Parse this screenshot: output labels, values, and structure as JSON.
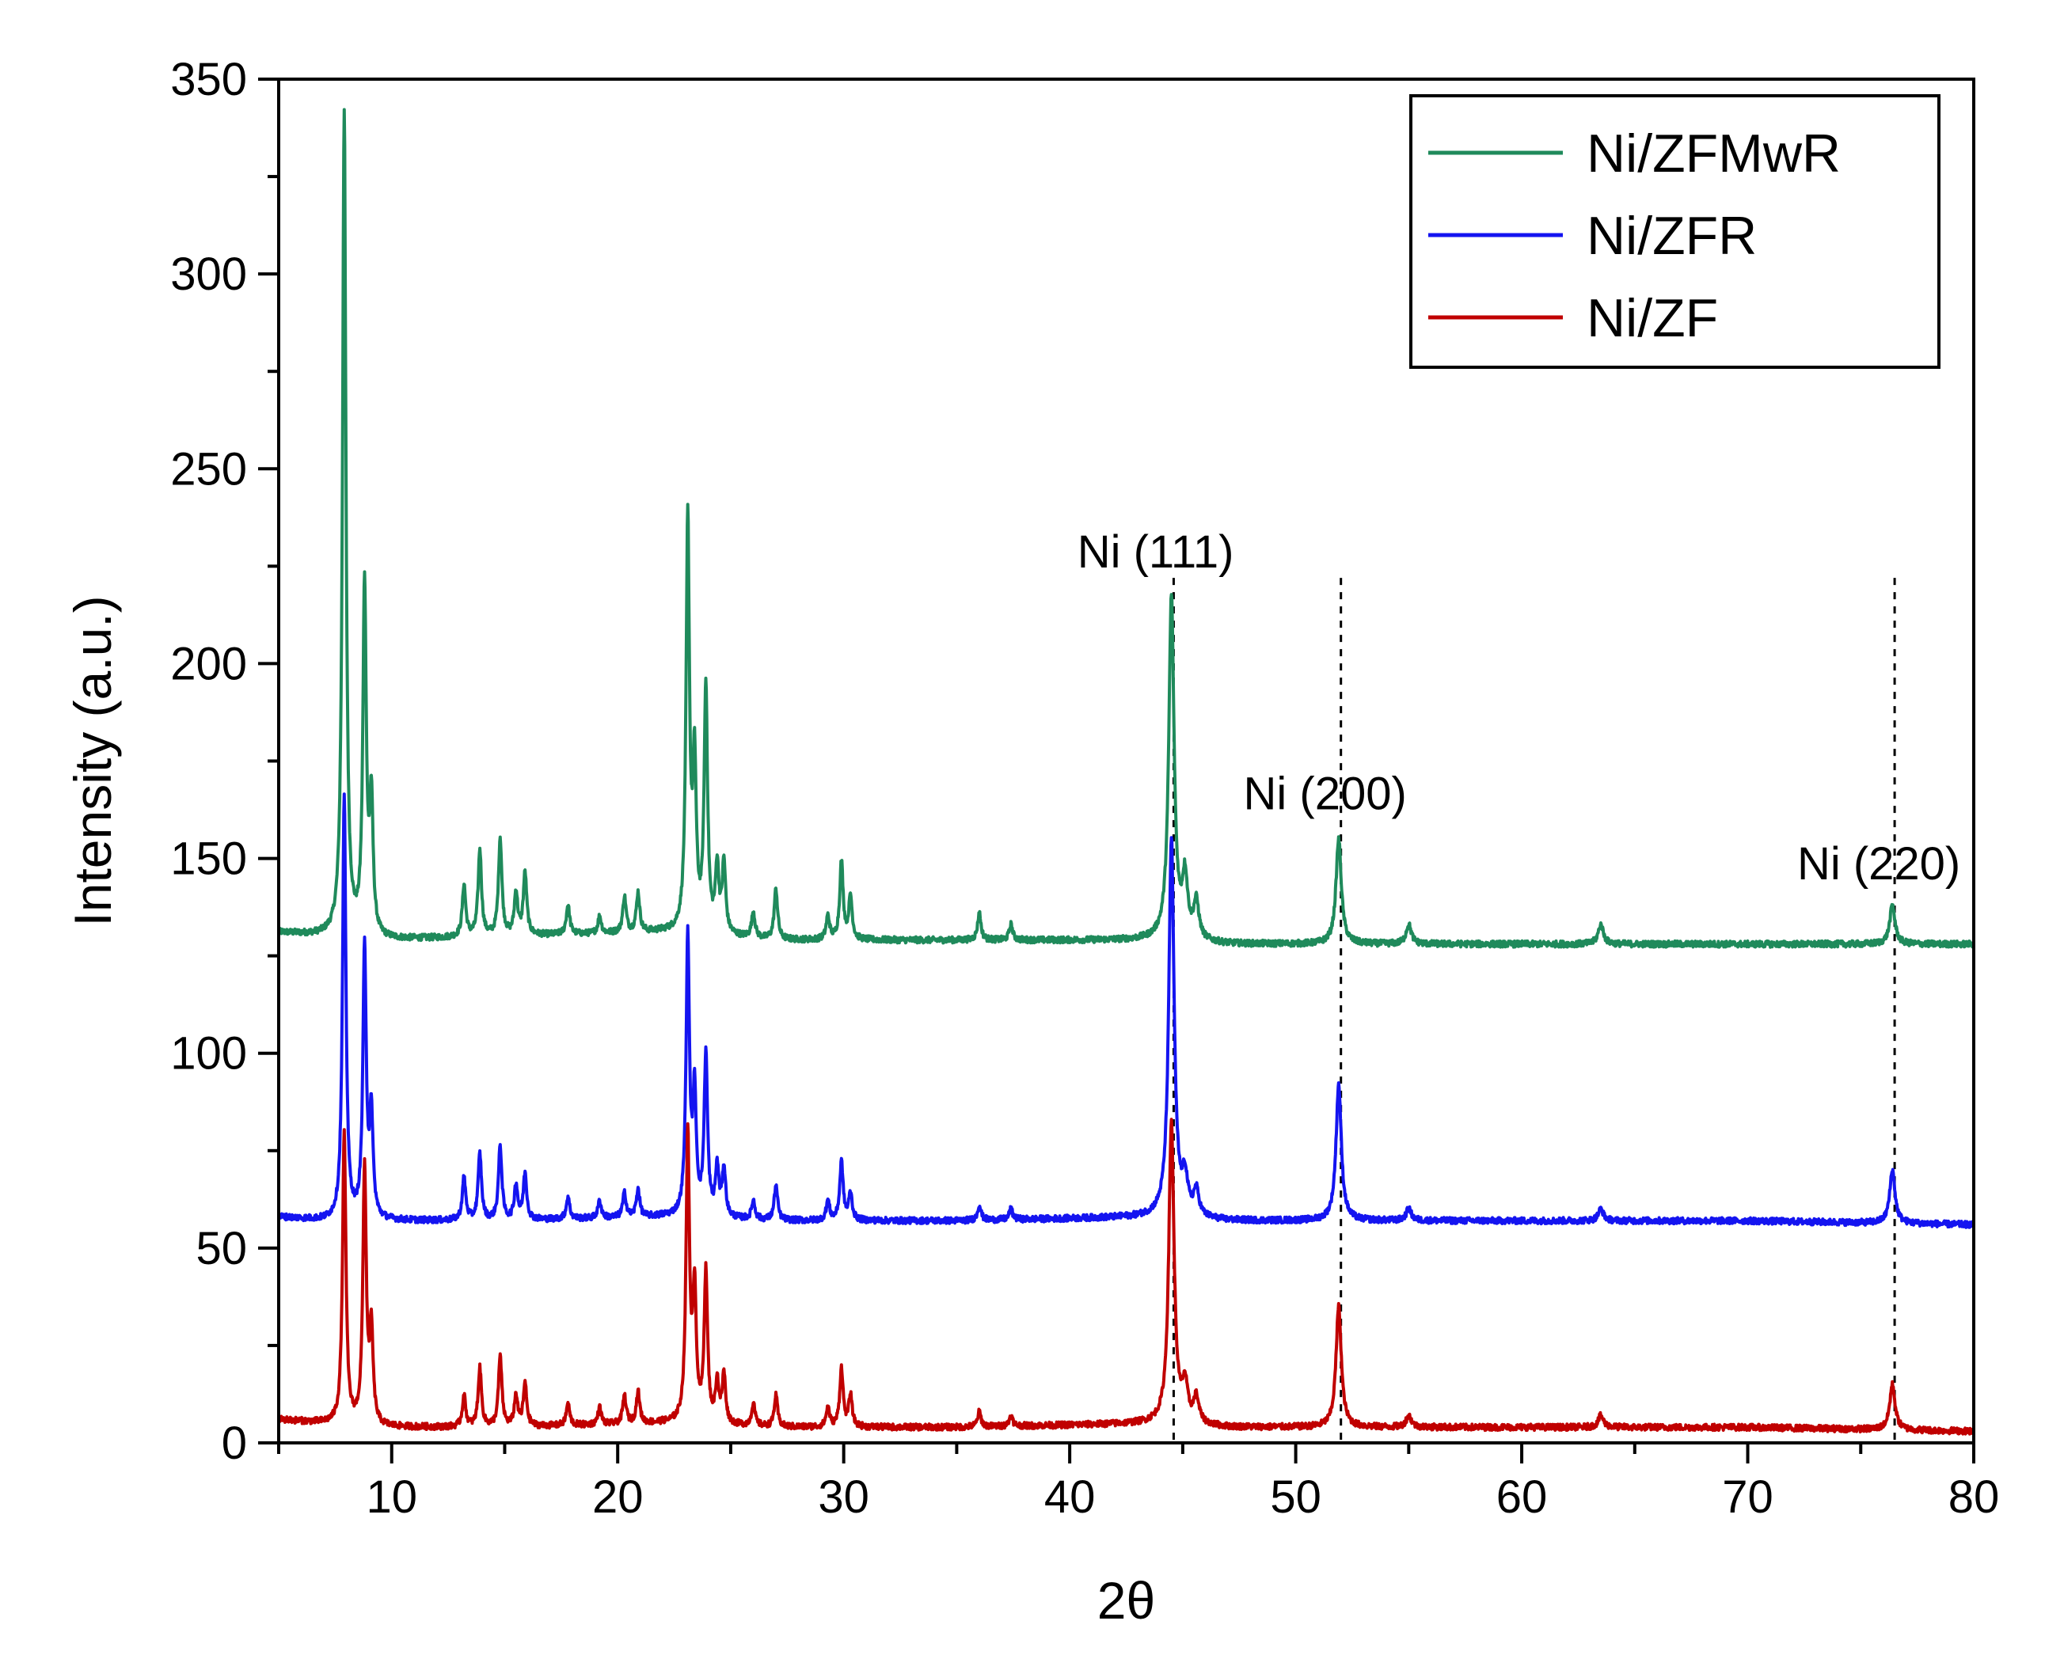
{
  "chart_data": {
    "type": "line",
    "title": "",
    "xlabel": "2θ",
    "ylabel": "Intensity (a.u.)",
    "xlim": [
      5,
      80
    ],
    "ylim": [
      0,
      350
    ],
    "xticks": [
      10,
      20,
      30,
      40,
      50,
      60,
      70,
      80
    ],
    "yticks": [
      0,
      50,
      100,
      150,
      200,
      250,
      300,
      350
    ],
    "grid": false,
    "legend_position": "top-right",
    "series": [
      {
        "name": "Ni/ZFMwR",
        "color": "#1f8a5b",
        "baseline": [
          [
            5,
            131
          ],
          [
            7,
            130
          ],
          [
            9.5,
            129
          ],
          [
            15,
            130
          ],
          [
            22,
            131
          ],
          [
            27,
            129
          ],
          [
            35,
            129
          ],
          [
            44,
            129
          ],
          [
            47,
            128
          ],
          [
            52,
            128
          ],
          [
            60,
            128
          ],
          [
            70,
            128
          ],
          [
            80,
            128
          ]
        ],
        "peaks": [
          {
            "x": 7.9,
            "y": 341
          },
          {
            "x": 8.8,
            "y": 219
          },
          {
            "x": 9.1,
            "y": 163
          },
          {
            "x": 13.2,
            "y": 143
          },
          {
            "x": 13.9,
            "y": 152
          },
          {
            "x": 14.8,
            "y": 155
          },
          {
            "x": 15.5,
            "y": 141
          },
          {
            "x": 15.9,
            "y": 146
          },
          {
            "x": 17.8,
            "y": 138
          },
          {
            "x": 19.2,
            "y": 135
          },
          {
            "x": 20.3,
            "y": 140
          },
          {
            "x": 20.9,
            "y": 141
          },
          {
            "x": 23.1,
            "y": 236
          },
          {
            "x": 23.4,
            "y": 172
          },
          {
            "x": 23.9,
            "y": 193
          },
          {
            "x": 24.4,
            "y": 147
          },
          {
            "x": 24.7,
            "y": 148
          },
          {
            "x": 26.0,
            "y": 136
          },
          {
            "x": 27.0,
            "y": 142
          },
          {
            "x": 29.3,
            "y": 135
          },
          {
            "x": 29.9,
            "y": 149
          },
          {
            "x": 30.3,
            "y": 140
          },
          {
            "x": 36.0,
            "y": 136
          },
          {
            "x": 37.4,
            "y": 133
          },
          {
            "x": 44.5,
            "y": 217
          },
          {
            "x": 45.1,
            "y": 144
          },
          {
            "x": 45.6,
            "y": 138
          },
          {
            "x": 51.9,
            "y": 155
          },
          {
            "x": 55.0,
            "y": 133
          },
          {
            "x": 63.5,
            "y": 133
          },
          {
            "x": 76.4,
            "y": 138
          }
        ]
      },
      {
        "name": "Ni/ZFR",
        "color": "#1414f0",
        "baseline": [
          [
            5,
            58
          ],
          [
            7,
            57
          ],
          [
            9.5,
            57
          ],
          [
            15,
            57
          ],
          [
            22,
            58
          ],
          [
            27,
            57
          ],
          [
            35,
            57
          ],
          [
            44,
            58
          ],
          [
            47,
            57
          ],
          [
            52,
            57
          ],
          [
            60,
            57
          ],
          [
            70,
            57
          ],
          [
            80,
            56
          ]
        ],
        "peaks": [
          {
            "x": 7.9,
            "y": 165
          },
          {
            "x": 8.8,
            "y": 126
          },
          {
            "x": 9.1,
            "y": 83
          },
          {
            "x": 13.2,
            "y": 68
          },
          {
            "x": 13.9,
            "y": 74
          },
          {
            "x": 14.8,
            "y": 76
          },
          {
            "x": 15.5,
            "y": 66
          },
          {
            "x": 15.9,
            "y": 69
          },
          {
            "x": 17.8,
            "y": 63
          },
          {
            "x": 19.2,
            "y": 62
          },
          {
            "x": 20.3,
            "y": 64
          },
          {
            "x": 20.9,
            "y": 65
          },
          {
            "x": 23.1,
            "y": 129
          },
          {
            "x": 23.4,
            "y": 88
          },
          {
            "x": 23.9,
            "y": 99
          },
          {
            "x": 24.4,
            "y": 70
          },
          {
            "x": 24.7,
            "y": 70
          },
          {
            "x": 26.0,
            "y": 62
          },
          {
            "x": 27.0,
            "y": 66
          },
          {
            "x": 29.3,
            "y": 62
          },
          {
            "x": 29.9,
            "y": 72
          },
          {
            "x": 30.3,
            "y": 64
          },
          {
            "x": 36.0,
            "y": 61
          },
          {
            "x": 37.4,
            "y": 60
          },
          {
            "x": 44.5,
            "y": 155
          },
          {
            "x": 45.1,
            "y": 67
          },
          {
            "x": 45.6,
            "y": 64
          },
          {
            "x": 51.9,
            "y": 92
          },
          {
            "x": 55.0,
            "y": 60
          },
          {
            "x": 63.5,
            "y": 60
          },
          {
            "x": 76.4,
            "y": 70
          }
        ]
      },
      {
        "name": "Ni/ZF",
        "color": "#c00000",
        "baseline": [
          [
            5,
            6
          ],
          [
            7,
            5
          ],
          [
            9.5,
            4
          ],
          [
            15,
            4
          ],
          [
            22,
            5
          ],
          [
            27,
            4
          ],
          [
            35,
            4
          ],
          [
            44,
            5
          ],
          [
            47,
            4
          ],
          [
            52,
            4
          ],
          [
            60,
            4
          ],
          [
            70,
            4
          ],
          [
            80,
            3
          ]
        ],
        "peaks": [
          {
            "x": 7.9,
            "y": 79
          },
          {
            "x": 8.8,
            "y": 70
          },
          {
            "x": 9.1,
            "y": 28
          },
          {
            "x": 13.2,
            "y": 12
          },
          {
            "x": 13.9,
            "y": 19
          },
          {
            "x": 14.8,
            "y": 22
          },
          {
            "x": 15.5,
            "y": 12
          },
          {
            "x": 15.9,
            "y": 15
          },
          {
            "x": 17.8,
            "y": 10
          },
          {
            "x": 19.2,
            "y": 9
          },
          {
            "x": 20.3,
            "y": 12
          },
          {
            "x": 20.9,
            "y": 13
          },
          {
            "x": 23.1,
            "y": 79
          },
          {
            "x": 23.4,
            "y": 38
          },
          {
            "x": 23.9,
            "y": 43
          },
          {
            "x": 24.4,
            "y": 15
          },
          {
            "x": 24.7,
            "y": 17
          },
          {
            "x": 26.0,
            "y": 10
          },
          {
            "x": 27.0,
            "y": 12
          },
          {
            "x": 29.3,
            "y": 9
          },
          {
            "x": 29.9,
            "y": 19
          },
          {
            "x": 30.3,
            "y": 12
          },
          {
            "x": 36.0,
            "y": 8
          },
          {
            "x": 37.4,
            "y": 7
          },
          {
            "x": 44.5,
            "y": 82
          },
          {
            "x": 45.1,
            "y": 14
          },
          {
            "x": 45.6,
            "y": 11
          },
          {
            "x": 51.9,
            "y": 35
          },
          {
            "x": 55.0,
            "y": 7
          },
          {
            "x": 63.5,
            "y": 7
          },
          {
            "x": 76.4,
            "y": 15
          }
        ]
      }
    ],
    "annotations": [
      {
        "label": "Ni (111)",
        "x": 44.5,
        "y": 223
      },
      {
        "label": "Ni (200)",
        "x": 52.0,
        "y": 161
      },
      {
        "label": "Ni (220)",
        "x": 76.5,
        "y": 143
      }
    ],
    "reference_lines": [
      {
        "x": 44.6,
        "style": "dashed"
      },
      {
        "x": 52.0,
        "style": "dashed"
      },
      {
        "x": 76.5,
        "style": "dashed"
      }
    ]
  }
}
